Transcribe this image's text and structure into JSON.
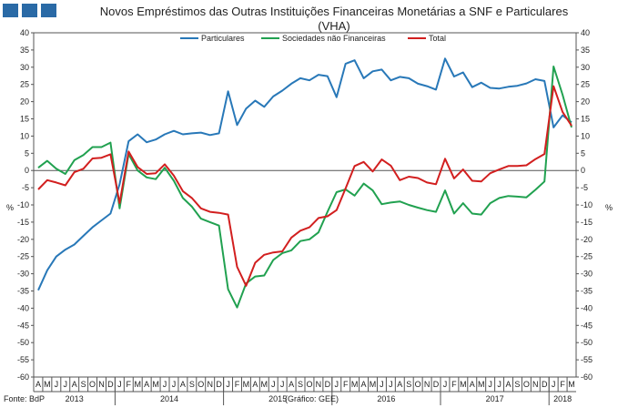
{
  "colors": {
    "particulares": "#2878b8",
    "snf": "#21a150",
    "total": "#d21f1f",
    "logo": "#2a6aa6"
  },
  "chart_data": {
    "type": "line",
    "title_line1": "Novos Empréstimos das Outras Instituições Financeiras Monetárias a SNF e Particulares",
    "title_line2": "(VHA)",
    "ylabel_left": "%",
    "ylabel_right": "%",
    "ylim": [
      -60,
      40
    ],
    "yticks": [
      40,
      35,
      30,
      25,
      20,
      15,
      10,
      5,
      0,
      -5,
      -10,
      -15,
      -20,
      -25,
      -30,
      -35,
      -40,
      -45,
      -50,
      -55,
      -60
    ],
    "month_labels": [
      "A",
      "M",
      "J",
      "J",
      "A",
      "S",
      "O",
      "N",
      "D",
      "J",
      "F",
      "M",
      "A",
      "M",
      "J",
      "J",
      "A",
      "S",
      "O",
      "N",
      "D",
      "J",
      "F",
      "M",
      "A",
      "M",
      "J",
      "J",
      "A",
      "S",
      "O",
      "N",
      "D",
      "J",
      "F",
      "M",
      "A",
      "M",
      "J",
      "J",
      "A",
      "S",
      "O",
      "N",
      "D",
      "J",
      "F",
      "M",
      "A",
      "M",
      "J",
      "J",
      "A",
      "S",
      "O",
      "N",
      "D",
      "J",
      "F",
      "M"
    ],
    "years": [
      {
        "label": "2013",
        "start": 0,
        "end": 9
      },
      {
        "label": "2014",
        "start": 9,
        "end": 21
      },
      {
        "label": "2015",
        "start": 21,
        "end": 33
      },
      {
        "label": "2016",
        "start": 33,
        "end": 45
      },
      {
        "label": "2017",
        "start": 45,
        "end": 57
      },
      {
        "label": "2018",
        "start": 57,
        "end": 60
      }
    ],
    "series": [
      {
        "name": "Particulares",
        "key": "particulares",
        "values": [
          -34.8,
          -29,
          -25,
          -23,
          -21.5,
          -19,
          -16.5,
          -14.5,
          -12.5,
          -4,
          8.5,
          10.5,
          8.2,
          9,
          10.5,
          11.5,
          10.5,
          10.8,
          11,
          10.3,
          10.8,
          23,
          13.2,
          18,
          20.3,
          18.5,
          21.5,
          23.2,
          25.2,
          26.8,
          26.2,
          27.8,
          27.4,
          21.3,
          31,
          32,
          26.8,
          28.8,
          29.3,
          26.2,
          27.2,
          26.8,
          25.2,
          24.5,
          23.5,
          32.5,
          27.3,
          28.5,
          24.2,
          25.5,
          24,
          23.8,
          24.3,
          24.6,
          25.3,
          26.5,
          26,
          12.5,
          16,
          14
        ]
      },
      {
        "name": "Sociedades não Financeiras",
        "key": "snf",
        "values": [
          0.8,
          2.8,
          0.5,
          -1,
          3,
          4.5,
          6.8,
          6.8,
          8.1,
          -11,
          4.8,
          0,
          -2,
          -2.5,
          0.8,
          -3,
          -8,
          -10.5,
          -14,
          -15,
          -16,
          -34.5,
          -39.8,
          -32.8,
          -30.8,
          -30.5,
          -26,
          -24,
          -23.2,
          -20.5,
          -20,
          -18,
          -12,
          -6.3,
          -5.5,
          -7.3,
          -3.8,
          -5.8,
          -9.8,
          -9.3,
          -9,
          -10,
          -10.8,
          -11.5,
          -12,
          -5.8,
          -12.5,
          -9.5,
          -12.5,
          -12.8,
          -9.5,
          -8,
          -7.4,
          -7.6,
          -7.8,
          -5.6,
          -3.2,
          30.2,
          22,
          12.5
        ]
      },
      {
        "name": "Total",
        "key": "total",
        "values": [
          -5.5,
          -2.8,
          -3.5,
          -4.3,
          -0.5,
          0.5,
          3.5,
          3.7,
          4.7,
          -9.5,
          5.5,
          1,
          -1,
          -0.8,
          1.8,
          -1.5,
          -6,
          -8,
          -11,
          -12,
          -12.3,
          -12.8,
          -28,
          -33.5,
          -26.8,
          -24.5,
          -23.8,
          -23.5,
          -19.5,
          -17.5,
          -16.5,
          -13.8,
          -13.3,
          -11.5,
          -5.2,
          1.3,
          2.5,
          -0.3,
          3.2,
          1.4,
          -2.8,
          -1.8,
          -2.2,
          -3.5,
          -4,
          3.4,
          -2.3,
          0.3,
          -3,
          -3.2,
          -0.8,
          0.3,
          1.3,
          1.3,
          1.5,
          3.3,
          4.8,
          24.5,
          17,
          13
        ]
      }
    ]
  },
  "footer": {
    "source": "Fonte: BdP",
    "credit": "(Gráfico: GEE)"
  }
}
